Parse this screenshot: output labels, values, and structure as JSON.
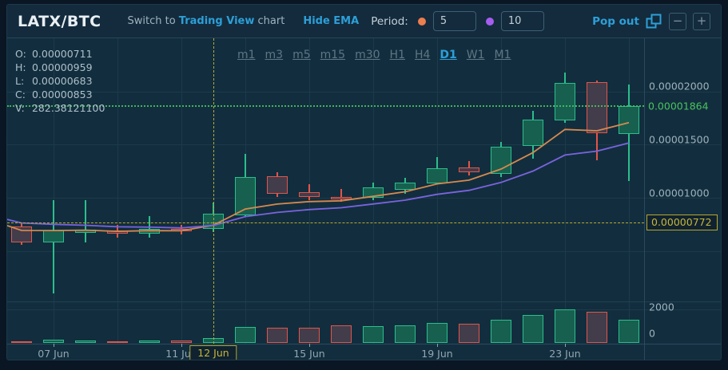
{
  "header": {
    "pair": "LATX/BTC",
    "switch_prefix": "Switch to ",
    "switch_link": "Trading View",
    "switch_suffix": " chart",
    "hide_ema": "Hide EMA",
    "period_label": "Period:",
    "ema_fast_input": {
      "dot_color": "#ed7e4e",
      "value": "5"
    },
    "ema_slow_input": {
      "dot_color": "#a55df0",
      "value": "10"
    },
    "pop_out": "Pop out",
    "zoom_out": "−",
    "zoom_in": "+"
  },
  "ohlc_panel": {
    "o_label": "O:",
    "o": "0.00000711",
    "h_label": "H:",
    "h": "0.00000959",
    "l_label": "L:",
    "l": "0.00000683",
    "c_label": "C:",
    "c": "0.00000853",
    "v_label": "V:",
    "v": "282.38121100"
  },
  "timeframes": {
    "options": [
      "m1",
      "m3",
      "m5",
      "m15",
      "m30",
      "H1",
      "H4",
      "D1",
      "W1",
      "M1"
    ],
    "active": "D1"
  },
  "price_axis": {
    "labels": [
      {
        "text": "0.00002000",
        "value": 2e-05
      },
      {
        "text": "0.00001500",
        "value": 1.5e-05
      },
      {
        "text": "0.00001000",
        "value": 1e-05
      }
    ],
    "current": {
      "text": "0.00001864",
      "value": 1.864e-05
    },
    "crosshair": {
      "text": "0.00000772",
      "value": 7.72e-06
    }
  },
  "volume_axis": {
    "labels": [
      {
        "text": "2000",
        "value": 2000
      },
      {
        "text": "0",
        "value": 0
      }
    ]
  },
  "time_axis": {
    "labels": [
      {
        "text": "07 Jun",
        "index": 1
      },
      {
        "text": "11 Jun",
        "index": 5
      },
      {
        "text": "15 Jun",
        "index": 9
      },
      {
        "text": "19 Jun",
        "index": 13
      },
      {
        "text": "23 Jun",
        "index": 17
      }
    ],
    "crosshair": {
      "text": "12 Jun",
      "index": 6
    }
  },
  "colors": {
    "background": "#0a1623",
    "panel": "#112a3a",
    "header_bg": "#132b3c",
    "plot_bg": "#122e3e",
    "grid": "#1c3a4a",
    "divider": "#2a4960",
    "bull": "#2cbe8c",
    "bull_fill": "#17604f",
    "bear": "#e35549",
    "bear_fill": "#423c4b",
    "ema_fast": "#d8894f",
    "ema_slow": "#7b63de",
    "link": "#2d9fd8",
    "axis_text": "#9fb1bd",
    "current_price": "#49c25e",
    "crosshair": "#b8a92e"
  },
  "chart_data": {
    "type": "candlestick",
    "title": "LATX/BTC daily chart with EMA(5) and EMA(10) and volume",
    "pair": "LATX/BTC",
    "interval": "D1",
    "ylim": [
      0,
      2.48e-05
    ],
    "volume_ylim": [
      0,
      2550
    ],
    "price_gridlines": [
      5e-06,
      1e-05,
      1.5e-05,
      2e-05
    ],
    "current_price": 1.864e-05,
    "crosshair": {
      "date": "12 Jun",
      "price": 7.72e-06
    },
    "ema": [
      {
        "name": "EMA 5",
        "period": 5,
        "color": "#d8894f",
        "seed": 7.55e-06
      },
      {
        "name": "EMA 10",
        "period": 10,
        "color": "#7b63de",
        "seed": 8.1e-06
      }
    ],
    "candles": [
      {
        "date": "06 Jun",
        "o": 7.39e-06,
        "h": 7.65e-06,
        "l": 5.65e-06,
        "c": 5.89e-06,
        "v": 100
      },
      {
        "date": "07 Jun",
        "o": 5.89e-06,
        "h": 9.84e-06,
        "l": 1.11e-06,
        "c": 6.97e-06,
        "v": 190
      },
      {
        "date": "08 Jun",
        "o": 6.79e-06,
        "h": 9.84e-06,
        "l": 5.89e-06,
        "c": 7.09e-06,
        "v": 150
      },
      {
        "date": "09 Jun",
        "o": 6.98e-06,
        "h": 7.5e-06,
        "l": 6.3e-06,
        "c": 6.68e-06,
        "v": 100
      },
      {
        "date": "10 Jun",
        "o": 6.66e-06,
        "h": 8.35e-06,
        "l": 6.3e-06,
        "c": 7.13e-06,
        "v": 140
      },
      {
        "date": "11 Jun",
        "o": 7.11e-06,
        "h": 7.55e-06,
        "l": 6.6e-06,
        "c": 6.93e-06,
        "v": 150
      },
      {
        "date": "12 Jun",
        "o": 7.11e-06,
        "h": 9.59e-06,
        "l": 6.83e-06,
        "c": 8.53e-06,
        "v": 282.381211
      },
      {
        "date": "13 Jun",
        "o": 8.43e-06,
        "h": 1.421e-05,
        "l": 8.3e-06,
        "c": 1.204e-05,
        "v": 950
      },
      {
        "date": "14 Jun",
        "o": 1.209e-05,
        "h": 1.242e-05,
        "l": 1.017e-05,
        "c": 1.04e-05,
        "v": 905
      },
      {
        "date": "15 Jun",
        "o": 1.055e-05,
        "h": 1.135e-05,
        "l": 9.8e-06,
        "c": 1.017e-05,
        "v": 905
      },
      {
        "date": "16 Jun",
        "o": 1.012e-05,
        "h": 1.085e-05,
        "l": 9.67e-06,
        "c": 9.92e-06,
        "v": 1040
      },
      {
        "date": "17 Jun",
        "o": 1.004e-05,
        "h": 1.149e-05,
        "l": 9.85e-06,
        "c": 1.104e-05,
        "v": 1020
      },
      {
        "date": "18 Jun",
        "o": 1.079e-05,
        "h": 1.192e-05,
        "l": 1.047e-05,
        "c": 1.147e-05,
        "v": 1070
      },
      {
        "date": "19 Jun",
        "o": 1.142e-05,
        "h": 1.391e-05,
        "l": 1.135e-05,
        "c": 1.284e-05,
        "v": 1200
      },
      {
        "date": "20 Jun",
        "o": 1.292e-05,
        "h": 1.349e-05,
        "l": 1.212e-05,
        "c": 1.242e-05,
        "v": 1155
      },
      {
        "date": "21 Jun",
        "o": 1.234e-05,
        "h": 1.528e-05,
        "l": 1.204e-05,
        "c": 1.483e-05,
        "v": 1400
      },
      {
        "date": "22 Jun",
        "o": 1.491e-05,
        "h": 1.823e-05,
        "l": 1.37e-05,
        "c": 1.74e-05,
        "v": 1690
      },
      {
        "date": "23 Jun",
        "o": 1.728e-05,
        "h": 2.182e-05,
        "l": 1.708e-05,
        "c": 2.081e-05,
        "v": 2015
      },
      {
        "date": "24 Jun",
        "o": 2.089e-05,
        "h": 2.107e-05,
        "l": 1.359e-05,
        "c": 1.608e-05,
        "v": 1850
      },
      {
        "date": "25 Jun",
        "o": 1.603e-05,
        "h": 2.071e-05,
        "l": 1.162e-05,
        "c": 1.864e-05,
        "v": 1365
      }
    ]
  }
}
